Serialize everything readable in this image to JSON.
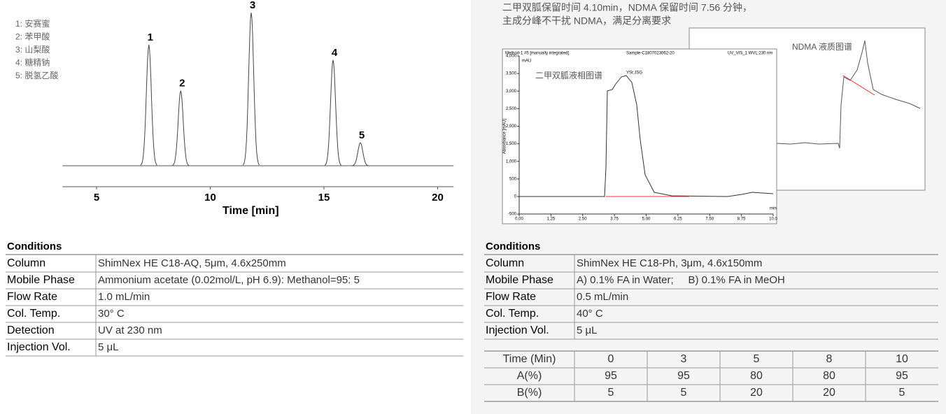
{
  "left": {
    "chromatogram": {
      "legend": [
        "1: 安赛蜜",
        "2: 苯甲酸",
        "3: 山梨酸",
        "4: 糖精钠",
        "5: 脱氢乙酸"
      ],
      "peaks": [
        {
          "label": "1",
          "time": 7.3,
          "height": 79
        },
        {
          "label": "2",
          "time": 8.7,
          "height": 49
        },
        {
          "label": "3",
          "time": 11.8,
          "height": 100
        },
        {
          "label": "4",
          "time": 15.4,
          "height": 69
        },
        {
          "label": "5",
          "time": 16.6,
          "height": 15
        }
      ],
      "xlim": [
        3.5,
        20.7
      ],
      "xticks": [
        5,
        10,
        15,
        20
      ],
      "xlabel": "Time [min]"
    },
    "conditions": {
      "title": "Conditions",
      "rows": [
        [
          "Column",
          "ShimNex HE C18-AQ, 5μm, 4.6x250mm"
        ],
        [
          "Mobile Phase",
          "Ammonium acetate (0.02mol/L, pH 6.9): Methanol=95: 5"
        ],
        [
          "Flow Rate",
          "1.0 mL/min"
        ],
        [
          "Col. Temp.",
          "30° C"
        ],
        [
          "Detection",
          "UV at 230 nm"
        ],
        [
          "Injection Vol.",
          "5 μL"
        ]
      ]
    }
  },
  "right": {
    "note": [
      "二甲双胍保留时间 4.10min，NDMA 保留时间 7.56 分钟，",
      "主成分峰不干扰 NDMA，满足分离要求"
    ],
    "screenshot": {
      "back_label": "NDMA 液质图谱",
      "front_label": "二甲双胍液相图谱",
      "header": [
        "Method-1 #5 [manually integrated]",
        "Sample-C1807023062-20",
        "UV_VIS_1 WVL:230 nm"
      ],
      "unit": "mAU",
      "peak_name": "YSt:JSG",
      "y_title": "Absorbance [mAU]",
      "x_unit": "min",
      "ylim": [
        -500,
        4000
      ],
      "yticks": [
        {
          "value": 4000,
          "label": "4,000"
        },
        {
          "value": 3500,
          "label": "3,500"
        },
        {
          "value": 3000,
          "label": "3,000"
        },
        {
          "value": 2500,
          "label": "2,500"
        },
        {
          "value": 2000,
          "label": "2,000"
        },
        {
          "value": 1500,
          "label": "1,500"
        },
        {
          "value": 1000,
          "label": "1,000"
        },
        500,
        0,
        -500
      ],
      "xlim": [
        0,
        10
      ],
      "xticks": [
        {
          "value": 0,
          "label": "0.00"
        },
        1.25,
        {
          "value": 2.5,
          "label": "2.50"
        },
        3.75,
        {
          "value": 5,
          "label": "5.00"
        },
        6.25,
        {
          "value": 7.5,
          "label": "7.50"
        },
        8.75,
        {
          "value": 10,
          "label": "10.0"
        }
      ]
    },
    "conditions": {
      "title": "Conditions",
      "rows": [
        [
          "Column",
          "ShimNex HE C18-Ph, 3μm, 4.6x150mm"
        ],
        [
          "Mobile Phase",
          "A) 0.1% FA in Water;     B) 0.1% FA in MeOH"
        ],
        [
          "Flow Rate",
          "0.5 mL/min"
        ],
        [
          "Col. Temp.",
          "40° C"
        ],
        [
          "Injection Vol.",
          "5 μL"
        ]
      ]
    },
    "gradient": {
      "header": [
        "Time (Min)",
        0,
        3,
        5,
        8,
        10
      ],
      "rows": [
        [
          "A(%)",
          95,
          95,
          80,
          80,
          95
        ],
        [
          "B(%)",
          5,
          5,
          20,
          20,
          5
        ]
      ]
    }
  }
}
